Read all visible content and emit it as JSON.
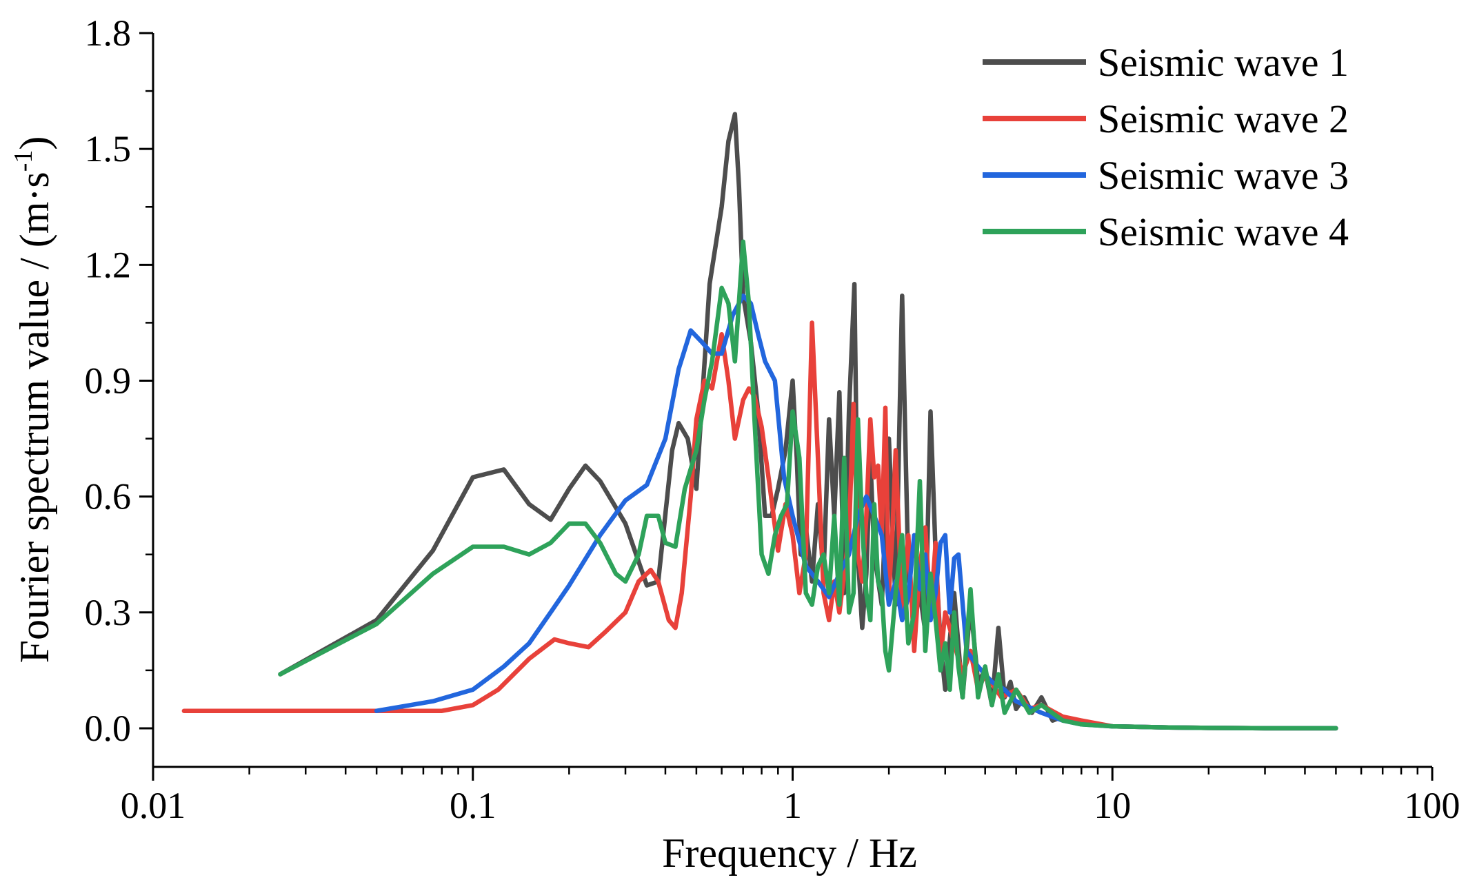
{
  "chart_data": {
    "type": "line",
    "xscale": "log",
    "xlim": [
      0.01,
      100
    ],
    "ylim": [
      -0.1,
      1.8
    ],
    "xticks": [
      {
        "value": 0.01,
        "label": "0.01"
      },
      {
        "value": 0.1,
        "label": "0.1"
      },
      {
        "value": 1,
        "label": "1"
      },
      {
        "value": 10,
        "label": "10"
      },
      {
        "value": 100,
        "label": "100"
      }
    ],
    "yticks": [
      {
        "value": 0.0,
        "label": "0.0"
      },
      {
        "value": 0.3,
        "label": "0.3"
      },
      {
        "value": 0.6,
        "label": "0.6"
      },
      {
        "value": 0.9,
        "label": "0.9"
      },
      {
        "value": 1.2,
        "label": "1.2"
      },
      {
        "value": 1.5,
        "label": "1.5"
      },
      {
        "value": 1.8,
        "label": "1.8"
      }
    ],
    "xlabel": "Frequency / Hz",
    "ylabel": "Fourier spectrum value / (m·s",
    "ylabel_sup": "-1",
    "ylabel_end": ")",
    "legend_position": "top-right",
    "series": [
      {
        "name": "Seismic wave 1",
        "color": "#4d4d4d",
        "x": [
          0.025,
          0.05,
          0.075,
          0.1,
          0.125,
          0.15,
          0.175,
          0.2,
          0.225,
          0.25,
          0.3,
          0.35,
          0.38,
          0.42,
          0.44,
          0.47,
          0.5,
          0.55,
          0.6,
          0.63,
          0.66,
          0.68,
          0.7,
          0.74,
          0.78,
          0.82,
          0.86,
          0.9,
          0.95,
          1.0,
          1.03,
          1.06,
          1.1,
          1.15,
          1.2,
          1.25,
          1.3,
          1.35,
          1.4,
          1.45,
          1.5,
          1.56,
          1.6,
          1.65,
          1.7,
          1.75,
          1.8,
          1.9,
          2.0,
          2.1,
          2.2,
          2.3,
          2.4,
          2.5,
          2.6,
          2.7,
          2.8,
          2.9,
          3.0,
          3.2,
          3.4,
          3.6,
          3.8,
          4.0,
          4.2,
          4.4,
          4.6,
          4.8,
          5.0,
          5.3,
          5.6,
          6.0,
          6.5,
          7.0,
          8.0,
          9.0,
          10,
          15,
          20,
          30,
          50
        ],
        "y": [
          0.14,
          0.28,
          0.46,
          0.65,
          0.67,
          0.58,
          0.54,
          0.62,
          0.68,
          0.64,
          0.53,
          0.37,
          0.38,
          0.72,
          0.79,
          0.75,
          0.62,
          1.15,
          1.35,
          1.52,
          1.59,
          1.4,
          1.12,
          1.0,
          0.82,
          0.55,
          0.55,
          0.62,
          0.72,
          0.9,
          0.7,
          0.45,
          0.52,
          0.38,
          0.58,
          0.4,
          0.8,
          0.55,
          0.87,
          0.35,
          0.82,
          1.15,
          0.45,
          0.26,
          0.4,
          0.7,
          0.45,
          0.32,
          0.75,
          0.32,
          1.12,
          0.4,
          0.28,
          0.35,
          0.25,
          0.82,
          0.45,
          0.22,
          0.1,
          0.35,
          0.08,
          0.32,
          0.12,
          0.15,
          0.06,
          0.26,
          0.08,
          0.12,
          0.05,
          0.08,
          0.04,
          0.08,
          0.02,
          0.03,
          0.01,
          0.01,
          0.005,
          0.002,
          0.001,
          0.0,
          0.0
        ]
      },
      {
        "name": "Seismic wave 2",
        "color": "#e8413a",
        "x": [
          0.0125,
          0.02,
          0.04,
          0.06,
          0.08,
          0.1,
          0.12,
          0.15,
          0.18,
          0.2,
          0.23,
          0.26,
          0.3,
          0.33,
          0.36,
          0.38,
          0.41,
          0.43,
          0.45,
          0.48,
          0.5,
          0.53,
          0.56,
          0.6,
          0.63,
          0.66,
          0.7,
          0.73,
          0.76,
          0.8,
          0.85,
          0.9,
          0.95,
          1.0,
          1.05,
          1.1,
          1.15,
          1.2,
          1.25,
          1.3,
          1.35,
          1.4,
          1.5,
          1.55,
          1.6,
          1.65,
          1.7,
          1.75,
          1.8,
          1.85,
          1.9,
          1.95,
          2.0,
          2.05,
          2.1,
          2.2,
          2.3,
          2.4,
          2.5,
          2.6,
          2.7,
          2.8,
          2.9,
          3.0,
          3.2,
          3.4,
          3.6,
          3.8,
          4.0,
          4.5,
          5.0,
          5.5,
          6.0,
          7.0,
          8.0,
          10,
          15,
          20,
          30,
          50
        ],
        "y": [
          0.045,
          0.045,
          0.045,
          0.045,
          0.045,
          0.06,
          0.1,
          0.18,
          0.23,
          0.22,
          0.21,
          0.25,
          0.3,
          0.38,
          0.41,
          0.38,
          0.28,
          0.26,
          0.35,
          0.6,
          0.8,
          0.9,
          0.88,
          1.02,
          0.9,
          0.75,
          0.85,
          0.88,
          0.86,
          0.78,
          0.62,
          0.46,
          0.58,
          0.5,
          0.35,
          0.45,
          1.05,
          0.7,
          0.35,
          0.28,
          0.38,
          0.3,
          0.5,
          0.84,
          0.45,
          0.38,
          0.55,
          0.8,
          0.65,
          0.68,
          0.5,
          0.83,
          0.35,
          0.5,
          0.72,
          0.3,
          0.5,
          0.2,
          0.42,
          0.52,
          0.3,
          0.48,
          0.18,
          0.3,
          0.22,
          0.14,
          0.2,
          0.1,
          0.14,
          0.08,
          0.1,
          0.05,
          0.06,
          0.03,
          0.02,
          0.005,
          0.002,
          0.001,
          0.0,
          0.0
        ]
      },
      {
        "name": "Seismic wave 3",
        "color": "#2266dd",
        "x": [
          0.05,
          0.075,
          0.1,
          0.125,
          0.15,
          0.175,
          0.2,
          0.25,
          0.3,
          0.35,
          0.4,
          0.44,
          0.48,
          0.52,
          0.56,
          0.6,
          0.65,
          0.7,
          0.74,
          0.78,
          0.82,
          0.88,
          0.94,
          1.0,
          1.1,
          1.2,
          1.3,
          1.4,
          1.5,
          1.6,
          1.7,
          1.8,
          1.9,
          2.0,
          2.1,
          2.2,
          2.3,
          2.4,
          2.5,
          2.6,
          2.7,
          2.8,
          2.9,
          3.0,
          3.1,
          3.2,
          3.3,
          3.5,
          3.8,
          4.2,
          4.6,
          5.0,
          6.0,
          7.0,
          8.0,
          10,
          15,
          20,
          30,
          50
        ],
        "y": [
          0.045,
          0.07,
          0.1,
          0.16,
          0.22,
          0.3,
          0.37,
          0.5,
          0.59,
          0.63,
          0.75,
          0.93,
          1.03,
          1.0,
          0.97,
          0.97,
          1.07,
          1.12,
          1.1,
          1.02,
          0.95,
          0.9,
          0.65,
          0.55,
          0.42,
          0.38,
          0.34,
          0.4,
          0.45,
          0.55,
          0.6,
          0.55,
          0.5,
          0.32,
          0.38,
          0.28,
          0.34,
          0.5,
          0.36,
          0.45,
          0.28,
          0.35,
          0.48,
          0.5,
          0.3,
          0.44,
          0.45,
          0.2,
          0.16,
          0.12,
          0.1,
          0.07,
          0.04,
          0.02,
          0.01,
          0.005,
          0.002,
          0.001,
          0.0,
          0.0
        ]
      },
      {
        "name": "Seismic wave 4",
        "color": "#2ea25a",
        "x": [
          0.025,
          0.05,
          0.075,
          0.1,
          0.125,
          0.15,
          0.175,
          0.2,
          0.225,
          0.25,
          0.28,
          0.3,
          0.33,
          0.35,
          0.38,
          0.4,
          0.43,
          0.46,
          0.5,
          0.53,
          0.56,
          0.6,
          0.63,
          0.66,
          0.7,
          0.73,
          0.76,
          0.8,
          0.84,
          0.88,
          0.92,
          0.96,
          1.0,
          1.05,
          1.1,
          1.15,
          1.2,
          1.25,
          1.3,
          1.35,
          1.4,
          1.45,
          1.5,
          1.55,
          1.6,
          1.65,
          1.7,
          1.75,
          1.8,
          1.85,
          1.9,
          1.95,
          2.0,
          2.1,
          2.2,
          2.3,
          2.4,
          2.5,
          2.6,
          2.7,
          2.8,
          2.9,
          3.0,
          3.1,
          3.2,
          3.3,
          3.4,
          3.6,
          3.8,
          4.0,
          4.2,
          4.4,
          4.6,
          5.0,
          5.5,
          6.0,
          7.0,
          8.0,
          10,
          15,
          20,
          30,
          50
        ],
        "y": [
          0.14,
          0.27,
          0.4,
          0.47,
          0.47,
          0.45,
          0.48,
          0.53,
          0.53,
          0.48,
          0.4,
          0.38,
          0.45,
          0.55,
          0.55,
          0.48,
          0.47,
          0.62,
          0.72,
          0.85,
          0.95,
          1.14,
          1.1,
          0.95,
          1.26,
          1.1,
          0.8,
          0.45,
          0.4,
          0.5,
          0.55,
          0.58,
          0.82,
          0.7,
          0.35,
          0.32,
          0.42,
          0.45,
          0.35,
          0.55,
          0.32,
          0.7,
          0.3,
          0.35,
          0.8,
          0.52,
          0.35,
          0.28,
          0.58,
          0.38,
          0.35,
          0.2,
          0.15,
          0.35,
          0.5,
          0.22,
          0.3,
          0.64,
          0.2,
          0.4,
          0.28,
          0.15,
          0.22,
          0.1,
          0.3,
          0.16,
          0.08,
          0.36,
          0.08,
          0.16,
          0.06,
          0.14,
          0.04,
          0.1,
          0.04,
          0.06,
          0.02,
          0.01,
          0.005,
          0.002,
          0.001,
          0.0,
          0.0
        ]
      }
    ]
  }
}
